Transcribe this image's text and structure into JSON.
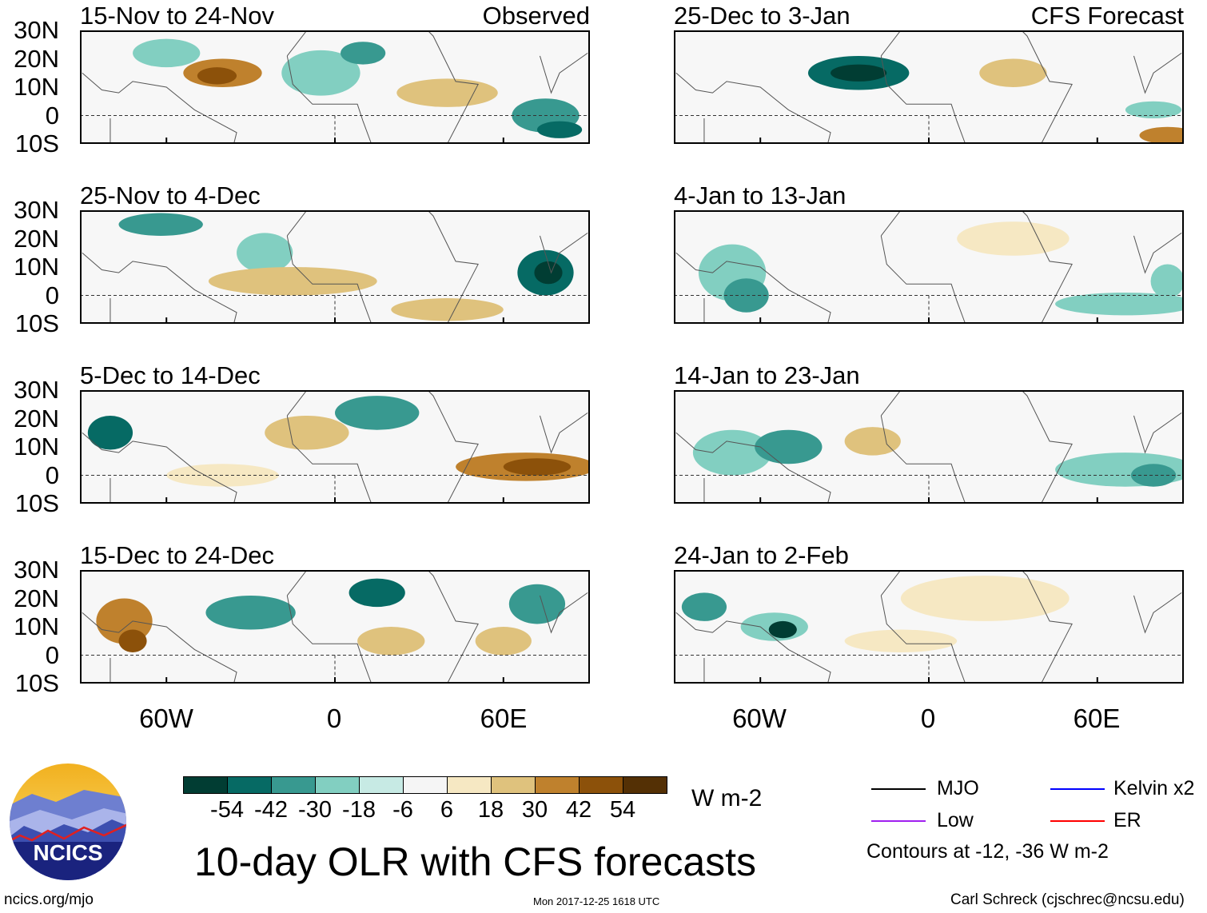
{
  "panels_left": [
    {
      "title": "15-Nov to 24-Nov",
      "label": "Observed"
    },
    {
      "title": "25-Nov to 4-Dec"
    },
    {
      "title": "5-Dec to 14-Dec"
    },
    {
      "title": "15-Dec to 24-Dec"
    }
  ],
  "panels_right": [
    {
      "title": "25-Dec to 3-Jan",
      "label": "CFS Forecast"
    },
    {
      "title": "4-Jan to 13-Jan"
    },
    {
      "title": "14-Jan to 23-Jan"
    },
    {
      "title": "24-Jan to 2-Feb"
    }
  ],
  "lat_labels": [
    "30N",
    "20N",
    "10N",
    "0",
    "10S"
  ],
  "lon_labels": [
    "60W",
    "0",
    "60E"
  ],
  "colorbar": {
    "colors": [
      "#013d33",
      "#066a64",
      "#389990",
      "#82cfc1",
      "#c7eae4",
      "#f5f5f5",
      "#f6e8c3",
      "#dfc27d",
      "#bf812d",
      "#8c510a",
      "#543005"
    ],
    "ticks": [
      "-54",
      "-42",
      "-30",
      "-18",
      "-6",
      "6",
      "18",
      "30",
      "42",
      "54"
    ],
    "units": "W m-2"
  },
  "legend": {
    "mjo": {
      "label": "MJO",
      "color": "#000000"
    },
    "kelvin": {
      "label": "Kelvin x2",
      "color": "#0000ff"
    },
    "low": {
      "label": "Low",
      "color": "#a020f0"
    },
    "er": {
      "label": "ER",
      "color": "#ff0000"
    },
    "note": "Contours at -12, -36 W m-2"
  },
  "logo_text": "NCICS",
  "main_title": "10-day OLR with CFS forecasts",
  "footer": {
    "left": "ncics.org/mjo",
    "center": "Mon 2017-12-25 1618 UTC",
    "right": "Carl Schreck (cjschrec@ncsu.edu)"
  }
}
